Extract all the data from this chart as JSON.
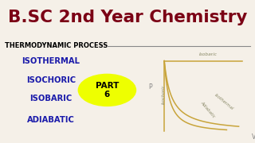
{
  "title": "B.SC 2nd Year Chemistry",
  "title_color": "#7B0015",
  "subtitle": "THERMODYNAMIC PROCESS",
  "subtitle_color": "#000000",
  "bg_color": "#F5F0E8",
  "left_labels": [
    "ISOTHERMAL",
    "ISOCHORIC",
    "ISOBARIC",
    "ADIABATIC"
  ],
  "left_label_color": "#1A1AAA",
  "part_text": "PART\n6",
  "part_bg": "#EEFF00",
  "graph_curve_color": "#C8A43A",
  "xlabel": "V",
  "ylabel": "P",
  "curve_labels": [
    "Isobaric",
    "Isothermal",
    "Adiabatic",
    "Isochoric"
  ],
  "line_color": "#888888"
}
